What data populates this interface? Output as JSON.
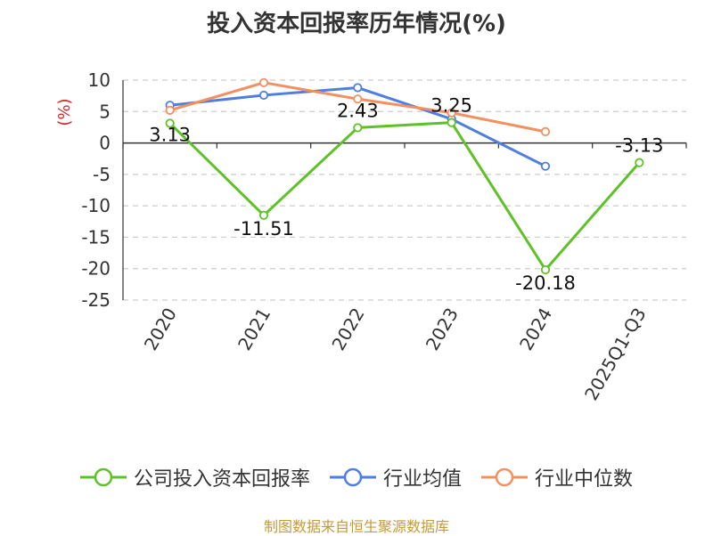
{
  "colors": {
    "company": "#5ec227",
    "avg": "#4e7ee0",
    "median": "#f39060"
  },
  "source": "制图数据来自恒生聚源数据库",
  "chart_data": {
    "type": "line",
    "title": "投入资本回报率历年情况(%)",
    "ylabel": "(%)",
    "xlabel": "",
    "categories": [
      "2020",
      "2021",
      "2022",
      "2023",
      "2024",
      "2025Q1-Q3"
    ],
    "ylim": [
      -25,
      10
    ],
    "yticks": [
      10,
      5,
      0,
      -5,
      -10,
      -15,
      -20,
      -25
    ],
    "grid": true,
    "legend_position": "bottom",
    "series": [
      {
        "name": "公司投入资本回报率",
        "color": "#5ec227",
        "values": [
          3.13,
          -11.51,
          2.43,
          3.25,
          -20.18,
          -3.13
        ],
        "labels": [
          "3.13",
          "-11.51",
          "2.43",
          "3.25",
          "-20.18",
          "-3.13"
        ]
      },
      {
        "name": "行业均值",
        "color": "#4e7ee0",
        "values": [
          6.0,
          7.6,
          8.8,
          3.8,
          -3.7,
          null
        ]
      },
      {
        "name": "行业中位数",
        "color": "#f39060",
        "values": [
          5.2,
          9.6,
          7.0,
          4.8,
          1.8,
          null
        ]
      }
    ]
  }
}
